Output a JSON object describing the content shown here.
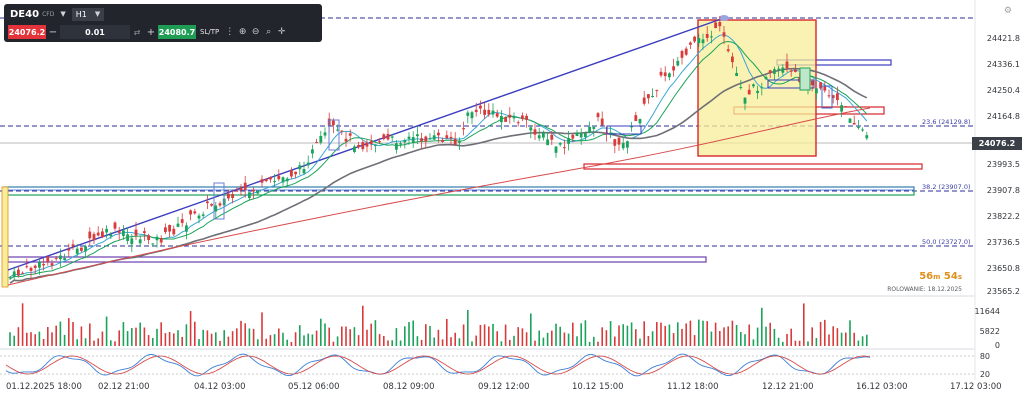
{
  "toolbar": {
    "symbol": "DE40",
    "symbol_type": "CFD",
    "timeframe": "H1",
    "sell_price": "24076.2",
    "volume": "0.01",
    "buy_price": "24080.7",
    "sltp_label": "SL/TP"
  },
  "price_axis": [
    "24421.8",
    "24336.1",
    "24250.4",
    "24164.8",
    "23993.5",
    "23907.8",
    "23822.2",
    "23736.5",
    "23650.8",
    "23565.2"
  ],
  "current_price": "24076.2",
  "fib_levels": [
    {
      "label": "23.6 (24129.8)"
    },
    {
      "label": "38.2 (23907.0)"
    },
    {
      "label": "50.0 (23727.0)"
    }
  ],
  "countdown": {
    "minutes": "56",
    "m": "m",
    "seconds": "54",
    "s": "s"
  },
  "rollover": "ROLOWANIE: 18.12.2025",
  "volume_axis": [
    "11644",
    "5822",
    "0"
  ],
  "stoch_axis": [
    "80",
    "20"
  ],
  "time_axis": [
    "01.12.2025 18:00",
    "02.12 21:00",
    "04.12 03:00",
    "05.12 06:00",
    "08.12 09:00",
    "09.12 12:00",
    "10.12 15:00",
    "11.12 18:00",
    "12.12 21:00",
    "16.12 03:00",
    "17.12 03:00"
  ],
  "colors": {
    "bull": "#1aa35a",
    "bear": "#d93a3a",
    "trend": "#3b3dbf",
    "fib": "#2b2f9a",
    "highlight": "#f7ee9a",
    "highlight_border": "#d7262b"
  }
}
